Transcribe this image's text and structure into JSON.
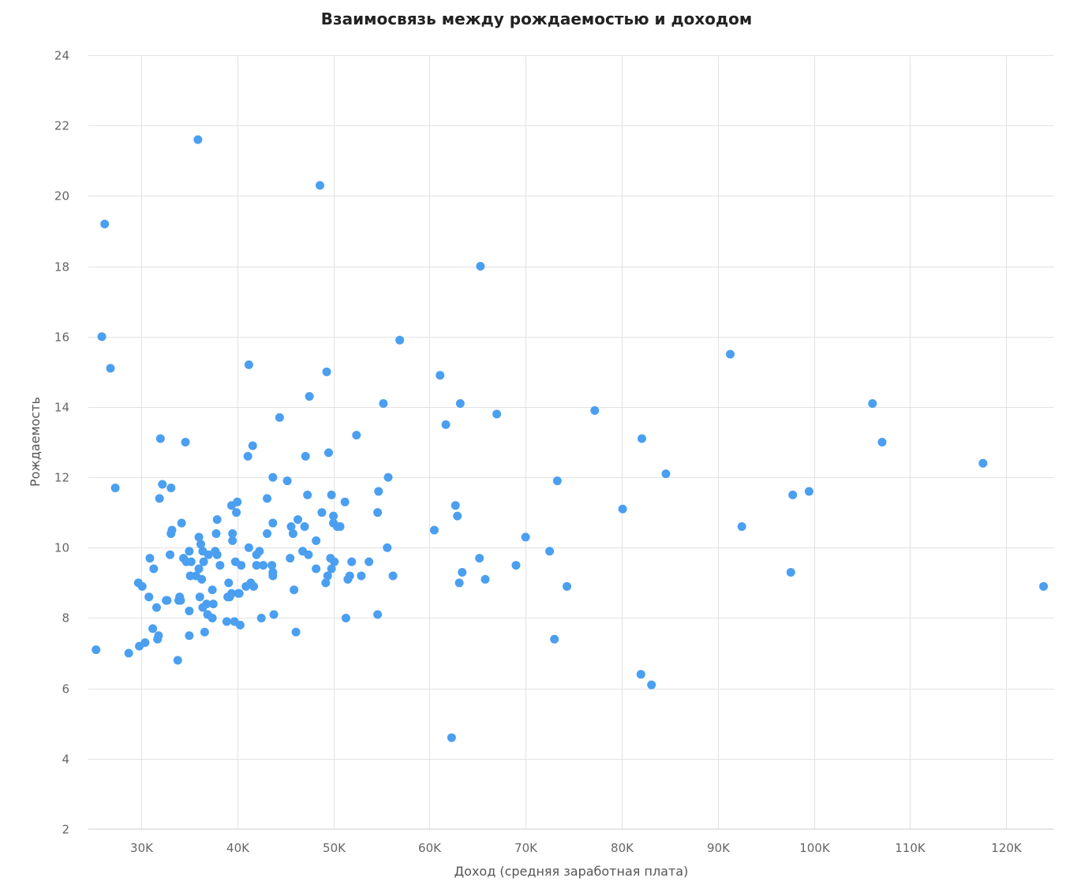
{
  "chart_data": {
    "type": "scatter",
    "title": "Взаимосвязь между рождаемостью и доходом",
    "xlabel": "Доход (средняя заработная плата)",
    "ylabel": "Рождаемость",
    "xlim": [
      24500,
      125000
    ],
    "ylim": [
      2,
      24
    ],
    "x_ticks": [
      30000,
      40000,
      50000,
      60000,
      70000,
      80000,
      90000,
      100000,
      110000,
      120000
    ],
    "x_tick_labels": [
      "30K",
      "40K",
      "50K",
      "60K",
      "70K",
      "80K",
      "90K",
      "100K",
      "110K",
      "120K"
    ],
    "y_ticks": [
      2,
      4,
      6,
      8,
      10,
      12,
      14,
      16,
      18,
      20,
      22,
      24
    ],
    "y_tick_labels": [
      "2",
      "4",
      "6",
      "8",
      "10",
      "12",
      "14",
      "16",
      "18",
      "20",
      "22",
      "24"
    ],
    "grid": true,
    "point_color": "#4a9ff0",
    "series": [
      {
        "points": [
          [
            25300,
            7.1
          ],
          [
            25900,
            16.0
          ],
          [
            26200,
            19.2
          ],
          [
            26800,
            15.1
          ],
          [
            27300,
            11.7
          ],
          [
            28700,
            7.0
          ],
          [
            29700,
            9.0
          ],
          [
            29800,
            7.2
          ],
          [
            30100,
            8.9
          ],
          [
            30400,
            7.3
          ],
          [
            30800,
            8.6
          ],
          [
            30900,
            9.7
          ],
          [
            31200,
            7.7
          ],
          [
            31300,
            9.4
          ],
          [
            31600,
            8.3
          ],
          [
            31700,
            7.4
          ],
          [
            31800,
            7.5
          ],
          [
            31900,
            11.4
          ],
          [
            32000,
            13.1
          ],
          [
            32200,
            11.8
          ],
          [
            32600,
            8.5
          ],
          [
            32700,
            8.5
          ],
          [
            33000,
            9.8
          ],
          [
            33100,
            10.4
          ],
          [
            33100,
            11.7
          ],
          [
            33200,
            10.5
          ],
          [
            33800,
            6.8
          ],
          [
            33900,
            8.5
          ],
          [
            34000,
            8.6
          ],
          [
            34100,
            8.5
          ],
          [
            34200,
            10.7
          ],
          [
            34400,
            9.7
          ],
          [
            34600,
            13.0
          ],
          [
            34700,
            9.6
          ],
          [
            35000,
            9.9
          ],
          [
            35000,
            8.2
          ],
          [
            35000,
            7.5
          ],
          [
            35100,
            9.2
          ],
          [
            35200,
            9.6
          ],
          [
            35700,
            9.2
          ],
          [
            35900,
            21.6
          ],
          [
            36000,
            10.3
          ],
          [
            36000,
            9.4
          ],
          [
            36100,
            8.6
          ],
          [
            36200,
            10.1
          ],
          [
            36300,
            9.1
          ],
          [
            36400,
            8.3
          ],
          [
            36400,
            9.9
          ],
          [
            36500,
            9.6
          ],
          [
            36600,
            7.6
          ],
          [
            36800,
            8.4
          ],
          [
            36900,
            8.1
          ],
          [
            37000,
            9.8
          ],
          [
            37400,
            8.0
          ],
          [
            37400,
            8.8
          ],
          [
            37500,
            8.4
          ],
          [
            37700,
            9.9
          ],
          [
            37800,
            10.4
          ],
          [
            37900,
            9.8
          ],
          [
            37900,
            10.8
          ],
          [
            38200,
            9.5
          ],
          [
            38900,
            7.9
          ],
          [
            39000,
            8.6
          ],
          [
            39100,
            9.0
          ],
          [
            39200,
            8.6
          ],
          [
            39400,
            11.2
          ],
          [
            39400,
            8.7
          ],
          [
            39500,
            10.2
          ],
          [
            39500,
            10.4
          ],
          [
            39700,
            7.9
          ],
          [
            39800,
            9.6
          ],
          [
            39900,
            11.0
          ],
          [
            40000,
            11.3
          ],
          [
            40100,
            8.7
          ],
          [
            40200,
            8.7
          ],
          [
            40300,
            7.8
          ],
          [
            40400,
            9.5
          ],
          [
            40900,
            8.9
          ],
          [
            41100,
            12.6
          ],
          [
            41200,
            15.2
          ],
          [
            41200,
            10.0
          ],
          [
            41400,
            9.0
          ],
          [
            41600,
            12.9
          ],
          [
            41700,
            8.9
          ],
          [
            42000,
            9.8
          ],
          [
            42000,
            9.5
          ],
          [
            42300,
            9.9
          ],
          [
            42500,
            8.0
          ],
          [
            42700,
            9.5
          ],
          [
            43100,
            11.4
          ],
          [
            43100,
            10.4
          ],
          [
            43600,
            9.5
          ],
          [
            43700,
            9.2
          ],
          [
            43700,
            9.3
          ],
          [
            43700,
            12.0
          ],
          [
            43700,
            10.7
          ],
          [
            43800,
            8.1
          ],
          [
            44400,
            13.7
          ],
          [
            45200,
            11.9
          ],
          [
            45500,
            9.7
          ],
          [
            45600,
            10.6
          ],
          [
            45800,
            10.4
          ],
          [
            45900,
            8.8
          ],
          [
            46100,
            7.6
          ],
          [
            46300,
            10.8
          ],
          [
            46800,
            9.9
          ],
          [
            47000,
            10.6
          ],
          [
            47100,
            12.6
          ],
          [
            47300,
            11.5
          ],
          [
            47400,
            9.8
          ],
          [
            47500,
            14.3
          ],
          [
            48200,
            10.2
          ],
          [
            48200,
            9.4
          ],
          [
            48600,
            20.3
          ],
          [
            48800,
            11.0
          ],
          [
            49200,
            9.0
          ],
          [
            49300,
            15.0
          ],
          [
            49400,
            9.2
          ],
          [
            49500,
            12.7
          ],
          [
            49700,
            9.7
          ],
          [
            49800,
            11.5
          ],
          [
            49800,
            9.4
          ],
          [
            50000,
            10.9
          ],
          [
            50000,
            10.7
          ],
          [
            50100,
            9.6
          ],
          [
            50400,
            10.6
          ],
          [
            50700,
            10.6
          ],
          [
            51200,
            11.3
          ],
          [
            51300,
            8.0
          ],
          [
            51500,
            9.1
          ],
          [
            51700,
            9.2
          ],
          [
            51900,
            9.6
          ],
          [
            52400,
            13.2
          ],
          [
            52900,
            9.2
          ],
          [
            53700,
            9.6
          ],
          [
            54600,
            11.0
          ],
          [
            54600,
            8.1
          ],
          [
            54700,
            11.6
          ],
          [
            55200,
            14.1
          ],
          [
            55600,
            10.0
          ],
          [
            55700,
            12.0
          ],
          [
            56200,
            9.2
          ],
          [
            56900,
            15.9
          ],
          [
            60500,
            10.5
          ],
          [
            61100,
            14.9
          ],
          [
            61700,
            13.5
          ],
          [
            62300,
            4.6
          ],
          [
            62700,
            11.2
          ],
          [
            62900,
            10.9
          ],
          [
            63100,
            9.0
          ],
          [
            63200,
            14.1
          ],
          [
            63400,
            9.3
          ],
          [
            65200,
            9.7
          ],
          [
            65300,
            18.0
          ],
          [
            65800,
            9.1
          ],
          [
            67000,
            13.8
          ],
          [
            69000,
            9.5
          ],
          [
            70000,
            10.3
          ],
          [
            72500,
            9.9
          ],
          [
            73000,
            7.4
          ],
          [
            73300,
            11.9
          ],
          [
            74300,
            8.9
          ],
          [
            77200,
            13.9
          ],
          [
            80100,
            11.1
          ],
          [
            82000,
            6.4
          ],
          [
            82100,
            13.1
          ],
          [
            83100,
            6.1
          ],
          [
            84600,
            12.1
          ],
          [
            91300,
            15.5
          ],
          [
            92500,
            10.6
          ],
          [
            97600,
            9.3
          ],
          [
            97800,
            11.5
          ],
          [
            99500,
            11.6
          ],
          [
            106100,
            14.1
          ],
          [
            107100,
            13.0
          ],
          [
            117600,
            12.4
          ],
          [
            123900,
            8.9
          ]
        ]
      }
    ]
  }
}
